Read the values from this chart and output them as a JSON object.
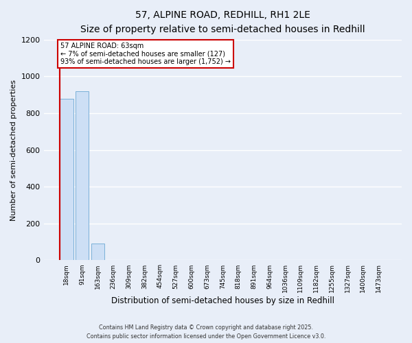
{
  "title": "57, ALPINE ROAD, REDHILL, RH1 2LE",
  "subtitle": "Size of property relative to semi-detached houses in Redhill",
  "xlabel": "Distribution of semi-detached houses by size in Redhill",
  "ylabel": "Number of semi-detached properties",
  "bar_labels": [
    "18sqm",
    "91sqm",
    "163sqm",
    "236sqm",
    "309sqm",
    "382sqm",
    "454sqm",
    "527sqm",
    "600sqm",
    "673sqm",
    "745sqm",
    "818sqm",
    "891sqm",
    "964sqm",
    "1036sqm",
    "1109sqm",
    "1182sqm",
    "1255sqm",
    "1327sqm",
    "1400sqm",
    "1473sqm"
  ],
  "bar_values": [
    878,
    920,
    90,
    2,
    0,
    0,
    0,
    0,
    0,
    0,
    0,
    0,
    0,
    0,
    0,
    0,
    0,
    0,
    0,
    0,
    0
  ],
  "bar_color": "#cddff5",
  "bar_edge_color": "#7ab0d8",
  "ylim": [
    0,
    1200
  ],
  "yticks": [
    0,
    200,
    400,
    600,
    800,
    1000,
    1200
  ],
  "annotation_title": "57 ALPINE ROAD: 63sqm",
  "annotation_line1": "← 7% of semi-detached houses are smaller (127)",
  "annotation_line2": "93% of semi-detached houses are larger (1,752) →",
  "annotation_box_facecolor": "#ffffff",
  "annotation_box_edgecolor": "#cc0000",
  "red_line_color": "#cc0000",
  "background_color": "#e8eef8",
  "grid_color": "#ffffff",
  "footer_line1": "Contains HM Land Registry data © Crown copyright and database right 2025.",
  "footer_line2": "Contains public sector information licensed under the Open Government Licence v3.0."
}
